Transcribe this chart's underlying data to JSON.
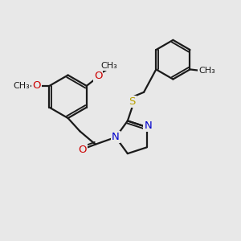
{
  "background_color": "#e8e8e8",
  "bond_color": "#1a1a1a",
  "N_color": "#0000cd",
  "O_color": "#cc0000",
  "S_color": "#b8a000",
  "C_color": "#1a1a1a",
  "line_width": 1.6,
  "font_size_atom": 9.5,
  "font_size_small": 8.0,
  "xlim": [
    0,
    10
  ],
  "ylim": [
    0,
    10
  ]
}
